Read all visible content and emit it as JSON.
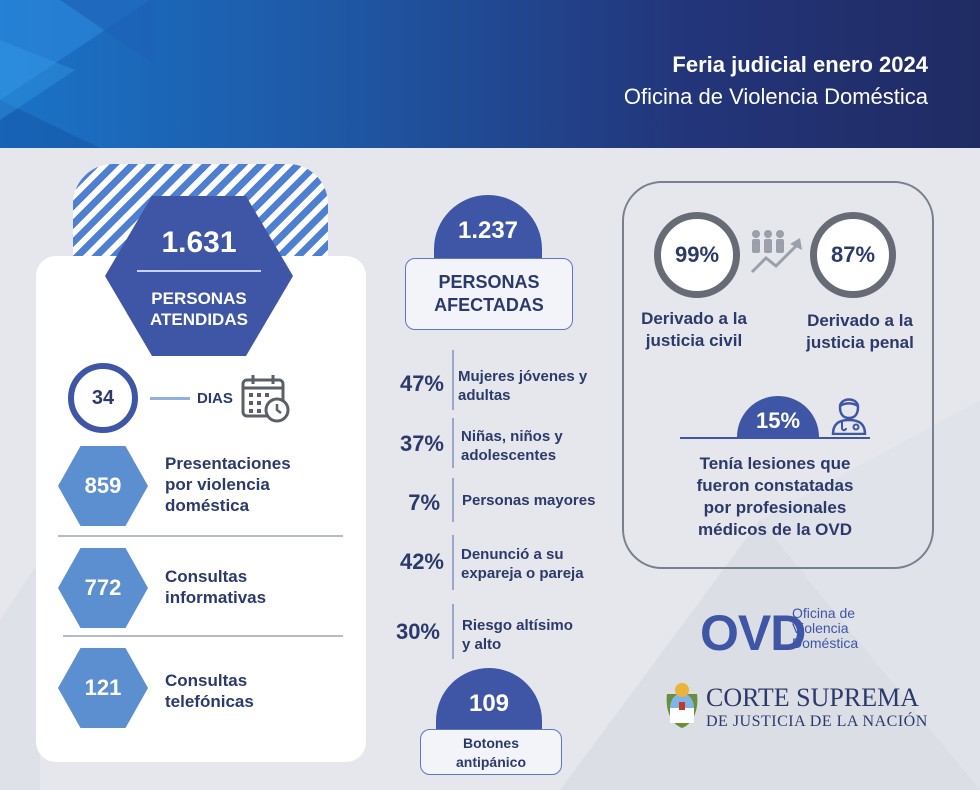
{
  "header": {
    "title": "Feria judicial enero 2024",
    "subtitle": "Oficina de Violencia Doméstica"
  },
  "left": {
    "attended_number": "1.631",
    "attended_label": "PERSONAS ATENDIDAS",
    "days_number": "34",
    "days_label": "DIAS",
    "items": [
      {
        "number": "859",
        "label_line1": "Presentaciones",
        "label_line2": "por violencia",
        "label_line3": "doméstica"
      },
      {
        "number": "772",
        "label_line1": "Consultas",
        "label_line2": "informativas"
      },
      {
        "number": "121",
        "label_line1": "Consultas",
        "label_line2": "telefónicas"
      }
    ]
  },
  "middle": {
    "affected_number": "1.237",
    "affected_label_line1": "PERSONAS",
    "affected_label_line2": "AFECTADAS",
    "stats": [
      {
        "pct": "47%",
        "line1": "Mujeres jóvenes y",
        "line2": "adultas"
      },
      {
        "pct": "37%",
        "line1": "Niñas, niños y",
        "line2": "adolescentes"
      },
      {
        "pct": "7%",
        "line1": "Personas mayores",
        "line2": ""
      },
      {
        "pct": "42%",
        "line1": "Denunció a su",
        "line2": "expareja o pareja"
      },
      {
        "pct": "30%",
        "line1": "Riesgo altísimo",
        "line2": "y alto"
      }
    ],
    "buttons_number": "109",
    "buttons_label_line1": "Botones",
    "buttons_label_line2": "antipánico"
  },
  "right": {
    "civil_pct": "99%",
    "civil_line1": "Derivado a la",
    "civil_line2": "justicia civil",
    "penal_pct": "87%",
    "penal_line1": "Derivado a la",
    "penal_line2": "justicia penal",
    "lesion_pct": "15%",
    "lesion_line1": "Tenía lesiones que",
    "lesion_line2": "fueron constatadas",
    "lesion_line3": "por profesionales",
    "lesion_line4": "médicos de la OVD"
  },
  "logos": {
    "ovd_mark": "OVD",
    "ovd_line1": "Oficina de",
    "ovd_line2": "Violencia",
    "ovd_line3": "Doméstica",
    "court_line1": "CORTE SUPREMA",
    "court_line2": "DE JUSTICIA DE LA NACIÓN"
  },
  "colors": {
    "primary": "#3f55a6",
    "light_blue": "#5c8fd0",
    "dark_text": "#2c3a6b",
    "header_dark": "#202b63"
  },
  "icons": [
    "calendar-clock-icon",
    "people-growth-icon",
    "doctor-icon",
    "argentine-seal-icon"
  ]
}
